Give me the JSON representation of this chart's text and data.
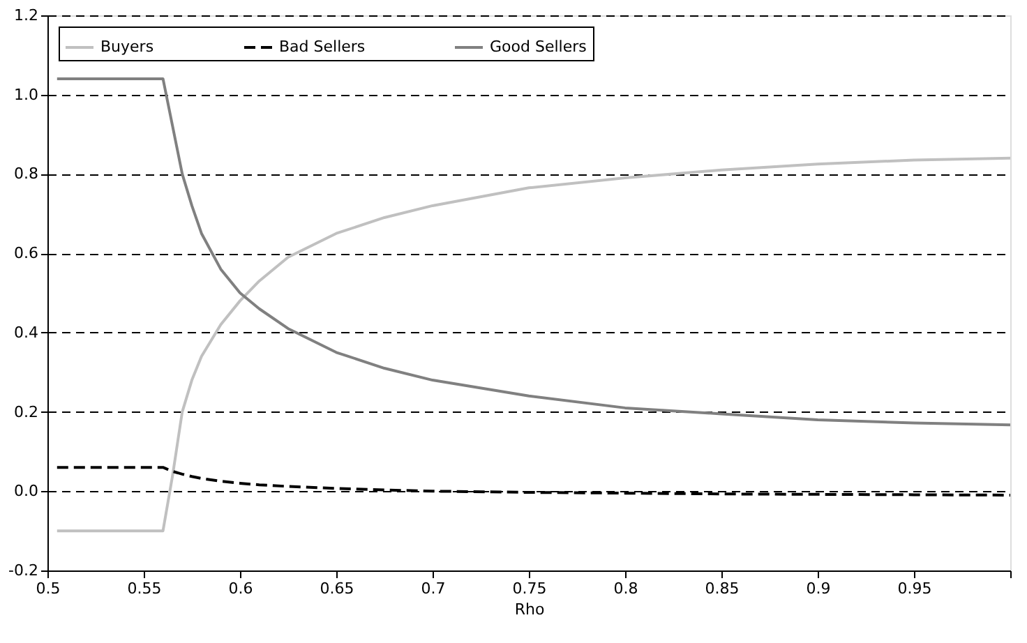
{
  "chart_data": {
    "type": "line",
    "xlabel": "Rho",
    "xlim": [
      0.5,
      1.0
    ],
    "xticks": [
      0.5,
      0.55,
      0.6,
      0.65,
      0.7,
      0.75,
      0.8,
      0.85,
      0.9,
      0.95,
      {
        "value": 1.0,
        "label": null
      }
    ],
    "ylim": [
      -0.2,
      1.2
    ],
    "yticks": [
      {
        "value": -0.2,
        "label": "-0.2"
      },
      {
        "value": 0,
        "label": "0.0"
      },
      {
        "value": 0.2,
        "label": "0.2"
      },
      {
        "value": 0.4,
        "label": "0.4"
      },
      {
        "value": 0.6,
        "label": "0.6"
      },
      {
        "value": 0.8,
        "label": "0.8"
      },
      {
        "value": 1.0,
        "label": "1.0"
      },
      {
        "value": 1.2,
        "label": "1.2"
      }
    ],
    "grid": "y",
    "legend": "top left",
    "x": [
      0.505,
      0.56,
      0.565,
      0.57,
      0.575,
      0.58,
      0.59,
      0.6,
      0.61,
      0.625,
      0.65,
      0.675,
      0.7,
      0.75,
      0.8,
      0.85,
      0.9,
      0.95,
      1.0
    ],
    "series": [
      {
        "name": "Buyers",
        "color": "#c0c0c0",
        "line_style": "solid",
        "values": [
          -0.1,
          -0.1,
          0.04,
          0.2,
          0.28,
          0.34,
          0.42,
          0.48,
          0.53,
          0.59,
          0.65,
          0.69,
          0.72,
          0.765,
          0.79,
          0.81,
          0.825,
          0.835,
          0.84
        ]
      },
      {
        "name": "Bad Sellers",
        "color": "#000000",
        "line_style": "dashed",
        "values": [
          0.06,
          0.06,
          0.05,
          0.043,
          0.037,
          0.032,
          0.025,
          0.02,
          0.016,
          0.012,
          0.007,
          0.003,
          0.0,
          -0.003,
          -0.005,
          -0.007,
          -0.008,
          -0.009,
          -0.01
        ]
      },
      {
        "name": "Good Sellers",
        "color": "#808080",
        "line_style": "solid",
        "values": [
          1.04,
          1.04,
          0.92,
          0.8,
          0.72,
          0.65,
          0.56,
          0.5,
          0.46,
          0.41,
          0.35,
          0.31,
          0.28,
          0.24,
          0.21,
          0.195,
          0.18,
          0.172,
          0.167
        ]
      }
    ]
  }
}
